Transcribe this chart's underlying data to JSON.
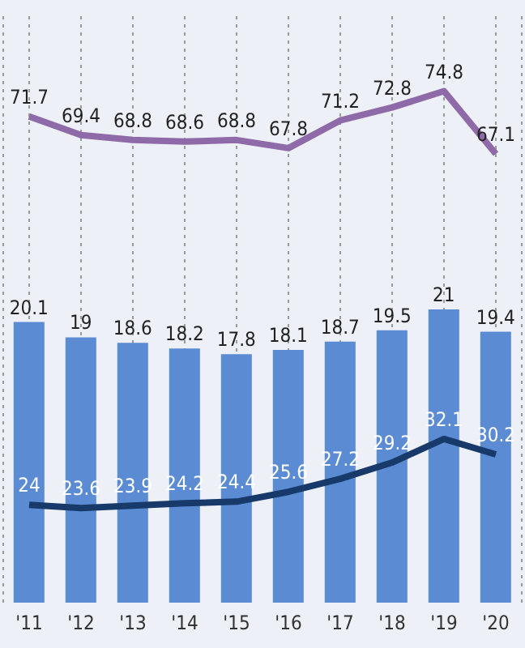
{
  "chart_data": {
    "type": "bar",
    "categories": [
      "'11",
      "'12",
      "'13",
      "'14",
      "'15",
      "'16",
      "'17",
      "'18",
      "'19",
      "'20"
    ],
    "series": [
      {
        "color": "#5a8bd3",
        "values": [
          20.1,
          19.0,
          18.6,
          18.2,
          17.8,
          18.1,
          18.7,
          19.5,
          21,
          19.4
        ]
      },
      {
        "type": "line",
        "axis": "y2",
        "color": "#8e6aa8",
        "values": [
          71.7,
          69.4,
          68.8,
          68.6,
          68.8,
          67.8,
          71.2,
          72.8,
          74.8,
          67.1
        ]
      },
      {
        "type": "line",
        "axis": "y2",
        "color": "#173a6b",
        "values": [
          24,
          23.6,
          23.9,
          24.2,
          24.4,
          25.6,
          27.2,
          29.2,
          32.1,
          30.2
        ]
      }
    ],
    "ylim": [
      0,
      42
    ],
    "y2lim": [
      12,
      84
    ],
    "tick_labels": "x",
    "grid": "x",
    "data_labels": true,
    "marker": "none"
  }
}
